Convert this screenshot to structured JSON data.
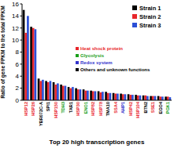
{
  "chart_data": {
    "type": "bar",
    "x_label": "Top 20 high transcription genes",
    "y_label": "Ratio of gene FPKM to the total FPKM",
    "categories": [
      "HSP12",
      "HSP26",
      "YBR072C-A",
      "SPI1",
      "HSP150",
      "TDH3",
      "TAR1",
      "HSP30",
      "ENO1",
      "HSP82",
      "HSP78",
      "TMA10",
      "SSA4",
      "AHP1",
      "HSP42",
      "HSP104",
      "BTN2",
      "SSE1",
      "EGO4",
      "PGK1"
    ],
    "category_colors": [
      "#e8262b",
      "#e8262b",
      "#000000",
      "#000000",
      "#e8262b",
      "#1aa01a",
      "#000000",
      "#e8262b",
      "#1aa01a",
      "#e8262b",
      "#e8262b",
      "#000000",
      "#e8262b",
      "#3333cc",
      "#e8262b",
      "#e8262b",
      "#000000",
      "#e8262b",
      "#000000",
      "#1aa01a"
    ],
    "annotations": [
      {
        "text": "Heat shock protein",
        "color": "#e8262b"
      },
      {
        "text": "Glycolysis",
        "color": "#1aa01a"
      },
      {
        "text": "Redox system",
        "color": "#3333cc"
      },
      {
        "text": "Others and unknown functions",
        "color": "#000000"
      }
    ],
    "series": [
      {
        "name": "Strain 1",
        "color": "#000000",
        "values": [
          15.0,
          12.2,
          3.6,
          3.2,
          3.0,
          2.6,
          2.2,
          2.0,
          1.8,
          1.6,
          1.5,
          1.4,
          1.2,
          1.1,
          1.0,
          0.9,
          0.8,
          0.7,
          0.7,
          0.6
        ]
      },
      {
        "name": "Strain 2",
        "color": "#e8262b",
        "values": [
          11.2,
          12.0,
          3.2,
          3.0,
          2.6,
          2.4,
          2.0,
          1.8,
          1.6,
          1.5,
          1.3,
          1.2,
          1.1,
          1.0,
          0.9,
          0.8,
          0.8,
          0.7,
          0.6,
          0.6
        ]
      },
      {
        "name": "Strain 3",
        "color": "#2b4fd6",
        "values": [
          14.0,
          11.8,
          3.4,
          3.2,
          2.8,
          2.4,
          2.2,
          1.8,
          1.6,
          1.5,
          1.4,
          1.2,
          1.1,
          1.0,
          0.9,
          0.8,
          0.7,
          0.7,
          0.6,
          0.5
        ]
      }
    ],
    "ylim": [
      0,
      16
    ],
    "yticks": [
      0,
      2,
      4,
      6,
      8,
      10,
      12,
      14,
      16
    ],
    "legend": "top-right"
  }
}
